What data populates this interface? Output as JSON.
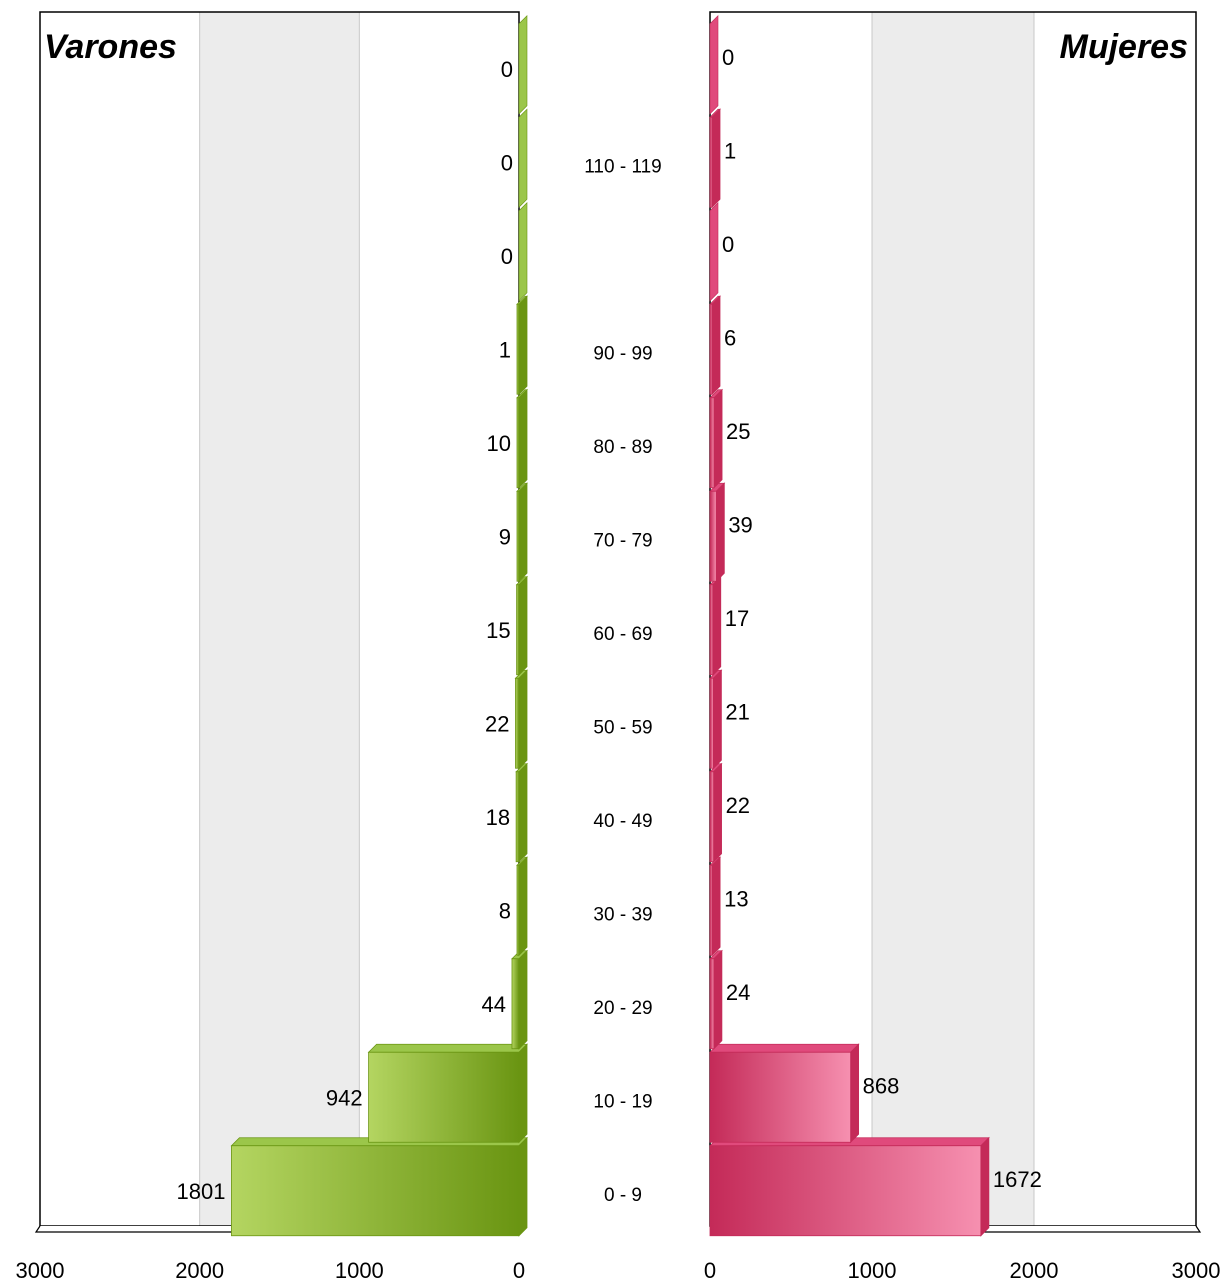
{
  "chart_data": {
    "type": "bar",
    "orientation": "horizontal",
    "layout": "population-pyramid",
    "categories": [
      "0 - 9",
      "10 - 19",
      "20 - 29",
      "30 - 39",
      "40 - 49",
      "50 - 59",
      "60 - 69",
      "70 - 79",
      "80 - 89",
      "90 - 99",
      "",
      "110 - 119",
      ""
    ],
    "series": [
      {
        "name": "Varones",
        "side": "left",
        "values": [
          1801,
          942,
          44,
          8,
          18,
          22,
          15,
          9,
          10,
          1,
          0,
          0,
          0
        ],
        "color_light": "#b4d561",
        "color_dark": "#6a9512",
        "color_top": "#9bc64a"
      },
      {
        "name": "Mujeres",
        "side": "right",
        "values": [
          1672,
          868,
          24,
          13,
          22,
          21,
          17,
          39,
          25,
          6,
          0,
          1,
          0
        ],
        "color_light": "#f690b0",
        "color_dark": "#c42a58",
        "color_top": "#e04a7c"
      }
    ],
    "xlim": [
      0,
      3000
    ],
    "ticks": [
      {
        "value": 3000,
        "label": "3000"
      },
      {
        "value": 2000,
        "label": "2000"
      },
      {
        "value": 1000,
        "label": "1000"
      },
      {
        "value": 0,
        "label": "0"
      }
    ],
    "grid": true,
    "band_fill": "#ececec"
  }
}
